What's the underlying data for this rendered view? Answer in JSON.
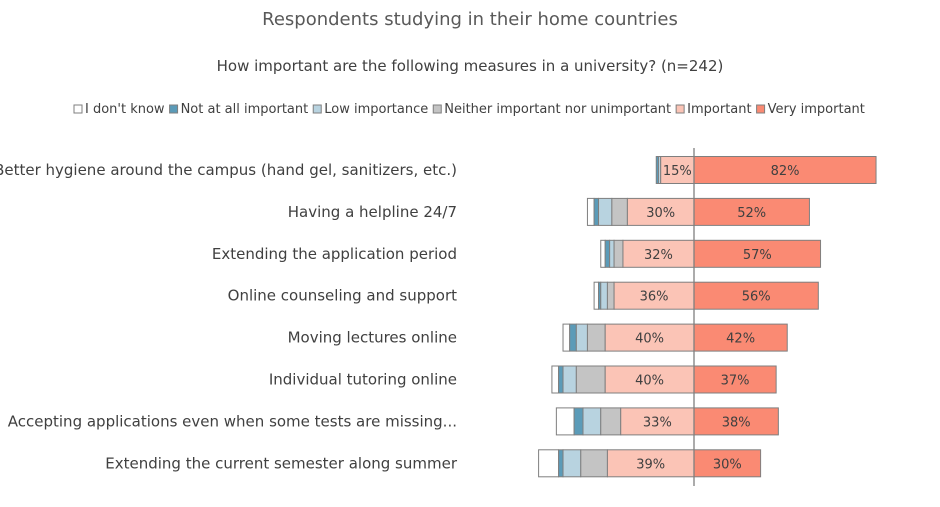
{
  "chart_data": {
    "type": "bar",
    "orientation": "horizontal",
    "stacked": "diverging",
    "title": "Respondents studying in their home countries",
    "subtitle": "How important are the following measures in a university? (n=242)",
    "legend_position": "top",
    "categories": [
      "Better hygiene around the campus (hand gel, sanitizers, etc.)",
      "Having a helpline 24/7",
      "Extending the application period",
      "Online counseling and support",
      "Moving lectures online",
      "Individual tutoring online",
      "Accepting applications even when some tests are missing...",
      "Extending the current semester along summer"
    ],
    "series": [
      {
        "name": "I don't know",
        "color": "#ffffff",
        "values": [
          0,
          3,
          2,
          2,
          3,
          3,
          8,
          9
        ]
      },
      {
        "name": "Not at all important",
        "color": "#5b9bb8",
        "values": [
          1,
          2,
          2,
          1,
          3,
          2,
          4,
          2
        ]
      },
      {
        "name": "Low importance",
        "color": "#b8d3e0",
        "values": [
          1,
          6,
          2,
          3,
          5,
          6,
          8,
          8
        ]
      },
      {
        "name": "Neither important nor unimportant",
        "color": "#c4c4c4",
        "values": [
          0,
          7,
          4,
          3,
          8,
          13,
          9,
          12
        ]
      },
      {
        "name": "Important",
        "color": "#fbc4b6",
        "values": [
          15,
          30,
          32,
          36,
          40,
          40,
          33,
          39
        ]
      },
      {
        "name": "Very important",
        "color": "#fa8a73",
        "values": [
          82,
          52,
          57,
          56,
          42,
          37,
          38,
          30
        ]
      }
    ],
    "value_labels": [
      [
        "15%",
        "82%"
      ],
      [
        "30%",
        "52%"
      ],
      [
        "32%",
        "57%"
      ],
      [
        "36%",
        "56%"
      ],
      [
        "40%",
        "42%"
      ],
      [
        "40%",
        "37%"
      ],
      [
        "33%",
        "38%"
      ],
      [
        "39%",
        "30%"
      ]
    ],
    "grid": false
  }
}
